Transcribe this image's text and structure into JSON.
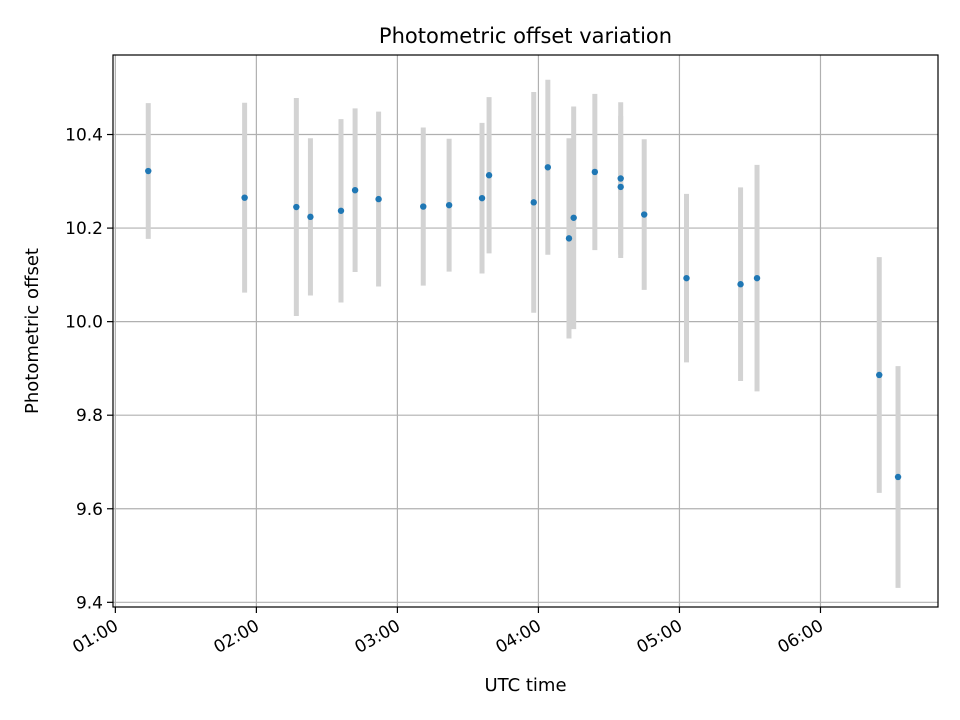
{
  "chart_data": {
    "type": "scatter",
    "title": "Photometric offset variation",
    "xlabel": "UTC time",
    "ylabel": "Photometric offset",
    "x_ticks": [
      "01:00",
      "02:00",
      "03:00",
      "04:00",
      "05:00",
      "06:00"
    ],
    "y_ticks": [
      "9.4",
      "9.6",
      "9.8",
      "10.0",
      "10.2",
      "10.4"
    ],
    "xlim": [
      "00:59",
      "06:50"
    ],
    "ylim": [
      9.39,
      10.57
    ],
    "grid": true,
    "point_color": "#1f77b4",
    "errorbar_color": "#d3d3d3",
    "points": [
      {
        "x": "01:14",
        "y": 10.322,
        "yerr": 0.145
      },
      {
        "x": "01:55",
        "y": 10.265,
        "yerr": 0.203
      },
      {
        "x": "02:17",
        "y": 10.245,
        "yerr": 0.233
      },
      {
        "x": "02:23",
        "y": 10.224,
        "yerr": 0.168
      },
      {
        "x": "02:36",
        "y": 10.237,
        "yerr": 0.196
      },
      {
        "x": "02:42",
        "y": 10.281,
        "yerr": 0.175
      },
      {
        "x": "02:52",
        "y": 10.262,
        "yerr": 0.187
      },
      {
        "x": "03:11",
        "y": 10.246,
        "yerr": 0.169
      },
      {
        "x": "03:22",
        "y": 10.249,
        "yerr": 0.142
      },
      {
        "x": "03:36",
        "y": 10.264,
        "yerr": 0.161
      },
      {
        "x": "03:39",
        "y": 10.313,
        "yerr": 0.167
      },
      {
        "x": "03:58",
        "y": 10.255,
        "yerr": 0.236
      },
      {
        "x": "04:04",
        "y": 10.33,
        "yerr": 0.187
      },
      {
        "x": "04:13",
        "y": 10.178,
        "yerr": 0.214
      },
      {
        "x": "04:15",
        "y": 10.222,
        "yerr": 0.238
      },
      {
        "x": "04:24",
        "y": 10.32,
        "yerr": 0.167
      },
      {
        "x": "04:35",
        "y": 10.288,
        "yerr": 0.152
      },
      {
        "x": "04:35",
        "y": 10.306,
        "yerr": 0.163
      },
      {
        "x": "04:45",
        "y": 10.229,
        "yerr": 0.161
      },
      {
        "x": "05:03",
        "y": 10.093,
        "yerr": 0.18
      },
      {
        "x": "05:26",
        "y": 10.08,
        "yerr": 0.207
      },
      {
        "x": "05:33",
        "y": 10.093,
        "yerr": 0.242
      },
      {
        "x": "06:25",
        "y": 9.886,
        "yerr": 0.252
      },
      {
        "x": "06:33",
        "y": 9.668,
        "yerr": 0.237
      }
    ]
  }
}
